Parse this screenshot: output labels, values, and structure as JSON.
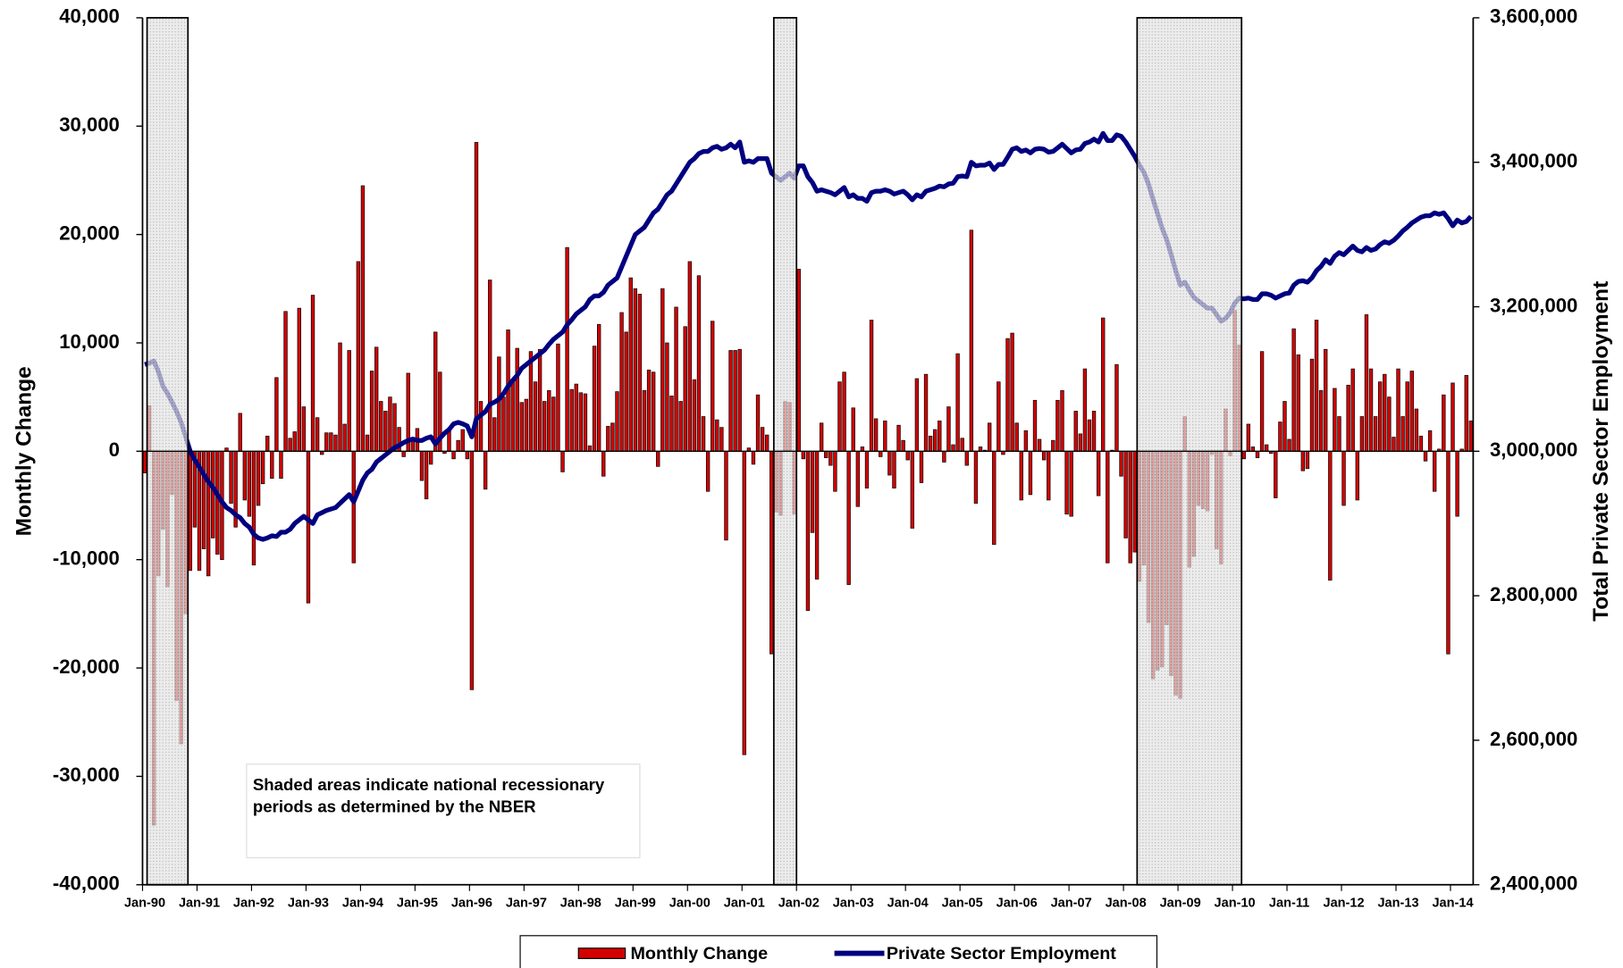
{
  "chart_data": {
    "type": "bar",
    "ylabel": "Monthly Change",
    "y2label": "Total Private Sector Employment",
    "annotation": "Shaded areas indicate national recessionary periods as determined by the NBER",
    "legend": "bottom",
    "ylim": [
      -40000,
      40000
    ],
    "yticks": [
      {
        "value": -40000,
        "label": "-40,000"
      },
      {
        "value": -30000,
        "label": "-30,000"
      },
      {
        "value": -20000,
        "label": "-20,000"
      },
      {
        "value": -10000,
        "label": "-10,000"
      },
      0,
      {
        "value": 10000,
        "label": "10,000"
      },
      {
        "value": 20000,
        "label": "20,000"
      },
      {
        "value": 30000,
        "label": "30,000"
      },
      {
        "value": 40000,
        "label": "40,000"
      }
    ],
    "y2lim": [
      2400000,
      3600000
    ],
    "y2ticks": [
      {
        "value": 2400000,
        "label": "2,400,000"
      },
      {
        "value": 2600000,
        "label": "2,600,000"
      },
      {
        "value": 2800000,
        "label": "2,800,000"
      },
      {
        "value": 3000000,
        "label": "3,000,000"
      },
      {
        "value": 3200000,
        "label": "3,200,000"
      },
      {
        "value": 3400000,
        "label": "3,400,000"
      },
      {
        "value": 3600000,
        "label": "3,600,000"
      }
    ],
    "recessions": [
      {
        "start": 1,
        "end": 9
      },
      {
        "start": 139,
        "end": 143
      },
      {
        "start": 219,
        "end": 241
      }
    ],
    "categories": [
      "Jan-90",
      null,
      null,
      null,
      null,
      null,
      null,
      null,
      null,
      null,
      null,
      null,
      "Jan-91",
      null,
      null,
      null,
      null,
      null,
      null,
      null,
      null,
      null,
      null,
      null,
      "Jan-92",
      null,
      null,
      null,
      null,
      null,
      null,
      null,
      null,
      null,
      null,
      null,
      "Jan-93",
      null,
      null,
      null,
      null,
      null,
      null,
      null,
      null,
      null,
      null,
      null,
      "Jan-94",
      null,
      null,
      null,
      null,
      null,
      null,
      null,
      null,
      null,
      null,
      null,
      "Jan-95",
      null,
      null,
      null,
      null,
      null,
      null,
      null,
      null,
      null,
      null,
      null,
      "Jan-96",
      null,
      null,
      null,
      null,
      null,
      null,
      null,
      null,
      null,
      null,
      null,
      "Jan-97",
      null,
      null,
      null,
      null,
      null,
      null,
      null,
      null,
      null,
      null,
      null,
      "Jan-98",
      null,
      null,
      null,
      null,
      null,
      null,
      null,
      null,
      null,
      null,
      null,
      "Jan-99",
      null,
      null,
      null,
      null,
      null,
      null,
      null,
      null,
      null,
      null,
      null,
      "Jan-00",
      null,
      null,
      null,
      null,
      null,
      null,
      null,
      null,
      null,
      null,
      null,
      "Jan-01",
      null,
      null,
      null,
      null,
      null,
      null,
      null,
      null,
      null,
      null,
      null,
      "Jan-02",
      null,
      null,
      null,
      null,
      null,
      null,
      null,
      null,
      null,
      null,
      null,
      "Jan-03",
      null,
      null,
      null,
      null,
      null,
      null,
      null,
      null,
      null,
      null,
      null,
      "Jan-04",
      null,
      null,
      null,
      null,
      null,
      null,
      null,
      null,
      null,
      null,
      null,
      "Jan-05",
      null,
      null,
      null,
      null,
      null,
      null,
      null,
      null,
      null,
      null,
      null,
      "Jan-06",
      null,
      null,
      null,
      null,
      null,
      null,
      null,
      null,
      null,
      null,
      null,
      "Jan-07",
      null,
      null,
      null,
      null,
      null,
      null,
      null,
      null,
      null,
      null,
      null,
      "Jan-08",
      null,
      null,
      null,
      null,
      null,
      null,
      null,
      null,
      null,
      null,
      null,
      "Jan-09",
      null,
      null,
      null,
      null,
      null,
      null,
      null,
      null,
      null,
      null,
      null,
      "Jan-10",
      null,
      null,
      null,
      null,
      null,
      null,
      null,
      null,
      null,
      null,
      null,
      "Jan-11",
      null,
      null,
      null,
      null,
      null,
      null,
      null,
      null,
      null,
      null,
      null,
      "Jan-12",
      null,
      null,
      null,
      null,
      null,
      null,
      null,
      null,
      null,
      null,
      null,
      "Jan-13",
      null,
      null,
      null,
      null,
      null,
      null,
      null,
      null,
      null,
      null,
      null,
      "Jan-14",
      null,
      null,
      null,
      null
    ],
    "series": [
      {
        "name": "Monthly Change",
        "type": "bar",
        "color": "#d40000",
        "values": [
          -2000,
          4200,
          -34500,
          -11500,
          -7200,
          -12500,
          -4000,
          -23000,
          -27000,
          -15000,
          -11000,
          -7000,
          -11000,
          -9000,
          -11500,
          -8000,
          -9500,
          -10000,
          300,
          -4800,
          -7000,
          3500,
          -4500,
          -6000,
          -10500,
          -5000,
          -3000,
          1400,
          -2500,
          6800,
          -2500,
          12900,
          1200,
          1800,
          13200,
          4100,
          -14000,
          14400,
          3100,
          -300,
          1700,
          1700,
          1500,
          10000,
          2500,
          9300,
          -10300,
          17500,
          24500,
          1500,
          7400,
          9600,
          4600,
          3700,
          5000,
          4400,
          2200,
          -500,
          7200,
          1200,
          2100,
          -2700,
          -4400,
          -1200,
          11000,
          7300,
          -200,
          2000,
          -700,
          1000,
          2000,
          -700,
          -22000,
          28500,
          4600,
          -3500,
          15800,
          3100,
          8700,
          5000,
          11200,
          6400,
          9500,
          4500,
          4800,
          9200,
          6400,
          9400,
          4600,
          5600,
          5000,
          9900,
          -1900,
          18800,
          5700,
          6200,
          5400,
          5300,
          500,
          9700,
          11700,
          -2300,
          2300,
          2600,
          5500,
          12800,
          11000,
          16000,
          15000,
          14500,
          5600,
          7500,
          7300,
          -1400,
          15000,
          10000,
          5100,
          13300,
          4600,
          11500,
          17500,
          6600,
          16200,
          3200,
          -3700,
          12000,
          2900,
          2200,
          -8200,
          9300,
          9300,
          9400,
          -28000,
          300,
          -1200,
          5200,
          2200,
          1500,
          -18700,
          -5600,
          -5900,
          4600,
          4500,
          -5800,
          16800,
          -700,
          -14700,
          -7500,
          -11800,
          2600,
          -600,
          -1300,
          -3700,
          6400,
          7300,
          -12300,
          4000,
          -5100,
          400,
          -3400,
          12100,
          3000,
          -500,
          2800,
          -2200,
          -3400,
          2400,
          1000,
          -800,
          -7100,
          6700,
          -2900,
          7100,
          1400,
          2000,
          2800,
          -1000,
          4100,
          600,
          9000,
          1200,
          -1300,
          20400,
          -4800,
          400,
          100,
          2600,
          -8600,
          6400,
          -300,
          10400,
          10900,
          2600,
          -4500,
          1900,
          -4000,
          4700,
          1100,
          -800,
          -4500,
          1000,
          4700,
          5600,
          -5800,
          -6000,
          3700,
          1600,
          7600,
          2900,
          3700,
          -4100,
          12300,
          -10300,
          100,
          8000,
          -2300,
          -8000,
          -10300,
          -9300,
          -12000,
          -10500,
          -15800,
          -21000,
          -20200,
          -19900,
          -16000,
          -20700,
          -22500,
          -22800,
          3200,
          -10700,
          -9700,
          -5000,
          -5300,
          -5500,
          -300,
          -9000,
          -10400,
          3900,
          -400,
          13000,
          9800,
          -700,
          2500,
          400,
          -600,
          9200,
          600,
          -200,
          -4300,
          2700,
          4600,
          1100,
          11300,
          8900,
          -1800,
          -1600,
          8500,
          12100,
          5600,
          9400,
          -11900,
          5800,
          3200,
          -5000,
          6100,
          7600,
          -4500,
          3200,
          12600,
          7600,
          3200,
          6400,
          7100,
          5000,
          1300,
          7600,
          3200,
          6400,
          7400,
          3900,
          1400,
          -900,
          1900,
          -3700,
          200,
          5200,
          -18700,
          6300,
          -6000,
          200,
          7000,
          2800
        ]
      },
      {
        "name": "Private Sector Employment",
        "type": "line",
        "axis": "y2",
        "color": "#000080",
        "values": [
          3120000,
          3122000,
          3125000,
          3110000,
          3090000,
          3080000,
          3068000,
          3055000,
          3040000,
          3020000,
          3000000,
          2988000,
          2978000,
          2968000,
          2958000,
          2950000,
          2940000,
          2930000,
          2922000,
          2918000,
          2912000,
          2908000,
          2900000,
          2895000,
          2885000,
          2880000,
          2878000,
          2880000,
          2883000,
          2882000,
          2888000,
          2888000,
          2892000,
          2900000,
          2905000,
          2910000,
          2905000,
          2900000,
          2912000,
          2915000,
          2918000,
          2920000,
          2922000,
          2928000,
          2934000,
          2940000,
          2930000,
          2945000,
          2960000,
          2970000,
          2975000,
          2985000,
          2990000,
          2995000,
          3000000,
          3005000,
          3008000,
          3012000,
          3015000,
          3017000,
          3015000,
          3015000,
          3018000,
          3020000,
          3010000,
          3018000,
          3025000,
          3030000,
          3038000,
          3040000,
          3038000,
          3035000,
          3020000,
          3045000,
          3050000,
          3055000,
          3065000,
          3068000,
          3072000,
          3080000,
          3090000,
          3098000,
          3105000,
          3115000,
          3120000,
          3125000,
          3130000,
          3135000,
          3140000,
          3148000,
          3155000,
          3160000,
          3165000,
          3175000,
          3182000,
          3190000,
          3195000,
          3200000,
          3210000,
          3215000,
          3215000,
          3220000,
          3230000,
          3235000,
          3240000,
          3255000,
          3270000,
          3285000,
          3300000,
          3305000,
          3310000,
          3320000,
          3330000,
          3335000,
          3345000,
          3355000,
          3360000,
          3370000,
          3380000,
          3390000,
          3400000,
          3405000,
          3412000,
          3415000,
          3415000,
          3420000,
          3422000,
          3418000,
          3420000,
          3425000,
          3420000,
          3428000,
          3400000,
          3402000,
          3400000,
          3405000,
          3405000,
          3405000,
          3385000,
          3380000,
          3375000,
          3380000,
          3385000,
          3378000,
          3395000,
          3395000,
          3380000,
          3372000,
          3360000,
          3362000,
          3360000,
          3358000,
          3355000,
          3360000,
          3365000,
          3352000,
          3355000,
          3350000,
          3350000,
          3346000,
          3358000,
          3360000,
          3360000,
          3362000,
          3360000,
          3356000,
          3358000,
          3360000,
          3355000,
          3348000,
          3355000,
          3352000,
          3360000,
          3362000,
          3364000,
          3367000,
          3366000,
          3370000,
          3371000,
          3380000,
          3381000,
          3380000,
          3400000,
          3395000,
          3396000,
          3396000,
          3399000,
          3390000,
          3397000,
          3397000,
          3407000,
          3418000,
          3420000,
          3415000,
          3417000,
          3413000,
          3418000,
          3419000,
          3418000,
          3414000,
          3415000,
          3420000,
          3425000,
          3419000,
          3413000,
          3417000,
          3418000,
          3426000,
          3428000,
          3432000,
          3428000,
          3440000,
          3430000,
          3430000,
          3438000,
          3436000,
          3428000,
          3418000,
          3408000,
          3396000,
          3386000,
          3370000,
          3349000,
          3329000,
          3309000,
          3293000,
          3272000,
          3250000,
          3230000,
          3234000,
          3223000,
          3213000,
          3208000,
          3203000,
          3198000,
          3198000,
          3189000,
          3180000,
          3184000,
          3192000,
          3205000,
          3212000,
          3211000,
          3212000,
          3210000,
          3210000,
          3218000,
          3218000,
          3216000,
          3212000,
          3215000,
          3218000,
          3219000,
          3230000,
          3235000,
          3236000,
          3234000,
          3240000,
          3250000,
          3256000,
          3265000,
          3260000,
          3270000,
          3275000,
          3272000,
          3278000,
          3284000,
          3278000,
          3276000,
          3282000,
          3278000,
          3280000,
          3286000,
          3290000,
          3288000,
          3292000,
          3298000,
          3305000,
          3310000,
          3316000,
          3320000,
          3324000,
          3326000,
          3326000,
          3330000,
          3328000,
          3330000,
          3322000,
          3312000,
          3320000,
          3316000,
          3318000,
          3325000
        ]
      }
    ]
  }
}
